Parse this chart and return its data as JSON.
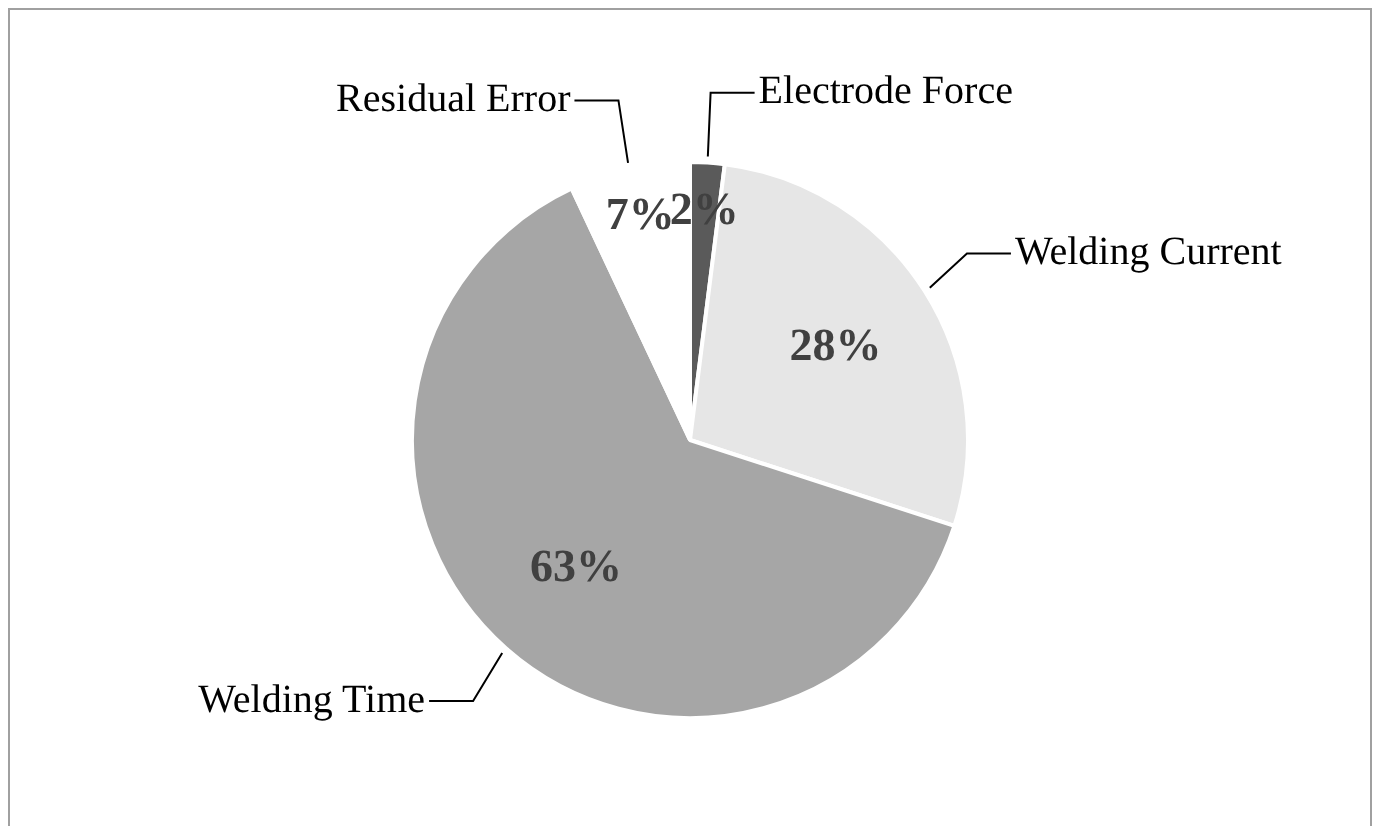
{
  "chart_data": {
    "type": "pie",
    "categories": [
      "Electrode Force",
      "Welding Current",
      "Welding Time",
      "Residual Error"
    ],
    "values": [
      2,
      28,
      63,
      7
    ],
    "colors": [
      "#5a5a5a",
      "#e6e6e6",
      "#a6a6a6",
      "#ffffff"
    ],
    "value_labels": [
      "2%",
      "28%",
      "63%",
      "7%"
    ],
    "legend": false
  }
}
